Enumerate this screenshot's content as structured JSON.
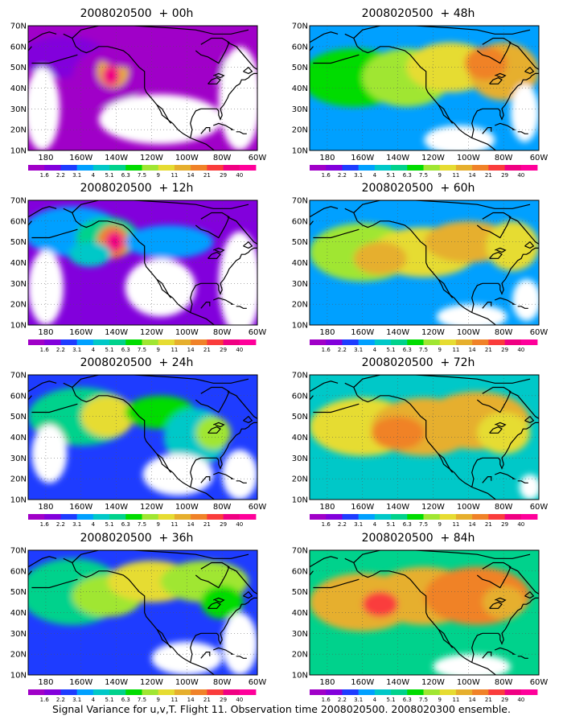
{
  "panels": [
    {
      "title": "2008020500  + 00h",
      "hour": 0
    },
    {
      "title": "2008020500  + 48h",
      "hour": 48
    },
    {
      "title": "2008020500  + 12h",
      "hour": 12
    },
    {
      "title": "2008020500  + 60h",
      "hour": 60
    },
    {
      "title": "2008020500  + 24h",
      "hour": 24
    },
    {
      "title": "2008020500  + 72h",
      "hour": 72
    },
    {
      "title": "2008020500  + 36h",
      "hour": 36
    },
    {
      "title": "2008020500  + 84h",
      "hour": 84
    }
  ],
  "lat_labels": [
    "70N",
    "60N",
    "50N",
    "40N",
    "30N",
    "20N",
    "10N"
  ],
  "lon_labels": [
    "180",
    "160W",
    "140W",
    "120W",
    "100W",
    "80W",
    "60W"
  ],
  "colorbar": {
    "levels": [
      "1.6",
      "2.2",
      "3.1",
      "4",
      "5.1",
      "6.3",
      "7.5",
      "9",
      "11",
      "14",
      "21",
      "29",
      "40"
    ],
    "colors": [
      "#a000c8",
      "#8200dc",
      "#1e3cff",
      "#00a0ff",
      "#00c8c8",
      "#00d28c",
      "#00dc00",
      "#a0e632",
      "#e6dc32",
      "#e6af2d",
      "#f08228",
      "#fa3c3c",
      "#f00082",
      "#ff009a"
    ]
  },
  "caption": "Signal Variance for u,v,T. Flight 11. Observation time 2008020500. 2008020300 ensemble."
}
